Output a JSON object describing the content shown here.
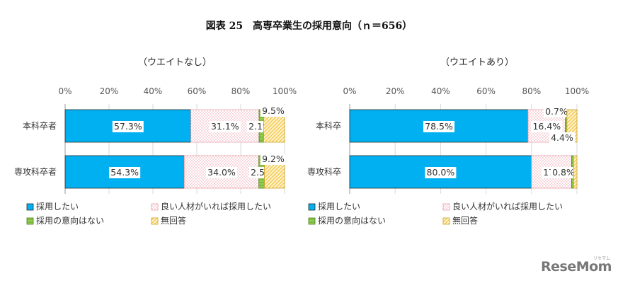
{
  "figure_title": "図表 25　高専卒業生の採用意向（ｎ＝656）",
  "logo": {
    "text": "ReseMom",
    "kana": "リセマム"
  },
  "colors": {
    "hire": "#00B0F0",
    "hire_if_good": "#F2BFC6",
    "no_intent": "#92D050",
    "no_answer": "#FFD966"
  },
  "chart_data": [
    {
      "type": "bar",
      "orientation": "horizontal",
      "stacked": "percent",
      "title": "（ウエイトなし）",
      "categories": [
        "本科卒者",
        "専攻科卒者"
      ],
      "xlim": [
        0,
        100
      ],
      "xticks": [
        "0%",
        "20%",
        "40%",
        "60%",
        "80%",
        "100%"
      ],
      "grid": true,
      "legend": "bottom",
      "series": [
        {
          "name": "採用したい",
          "values": [
            57.3,
            54.3
          ],
          "labels": [
            "57.3%",
            "54.3%"
          ]
        },
        {
          "name": "良い人材がいれば採用したい",
          "values": [
            31.1,
            34.0
          ],
          "labels": [
            "31.1%",
            "34.0%"
          ]
        },
        {
          "name": "採用の意向はない",
          "values": [
            2.1,
            2.5
          ],
          "labels": [
            "2.1%",
            "2.5%"
          ]
        },
        {
          "name": "無回答",
          "values": [
            9.5,
            9.2
          ],
          "labels": [
            "9.5%",
            "9.2%"
          ]
        }
      ]
    },
    {
      "type": "bar",
      "orientation": "horizontal",
      "stacked": "percent",
      "title": "（ウエイトあり）",
      "categories": [
        "本科卒",
        "専攻科卒"
      ],
      "xlim": [
        0,
        100
      ],
      "xticks": [
        "0%",
        "20%",
        "40%",
        "60%",
        "80%",
        "100%"
      ],
      "grid": true,
      "legend": "bottom",
      "series": [
        {
          "name": "採用したい",
          "values": [
            78.5,
            80.0
          ],
          "labels": [
            "78.5%",
            "80.0%"
          ]
        },
        {
          "name": "良い人材がいれば採用したい",
          "values": [
            16.4,
            17.7
          ],
          "labels": [
            "16.4%",
            "17.7%"
          ]
        },
        {
          "name": "採用の意向はない",
          "values": [
            0.7,
            0.8
          ],
          "labels": [
            "0.7%",
            "0.8%"
          ]
        },
        {
          "name": "無回答",
          "values": [
            4.4,
            1.5
          ],
          "labels": [
            "4.4%",
            ""
          ]
        }
      ]
    }
  ]
}
